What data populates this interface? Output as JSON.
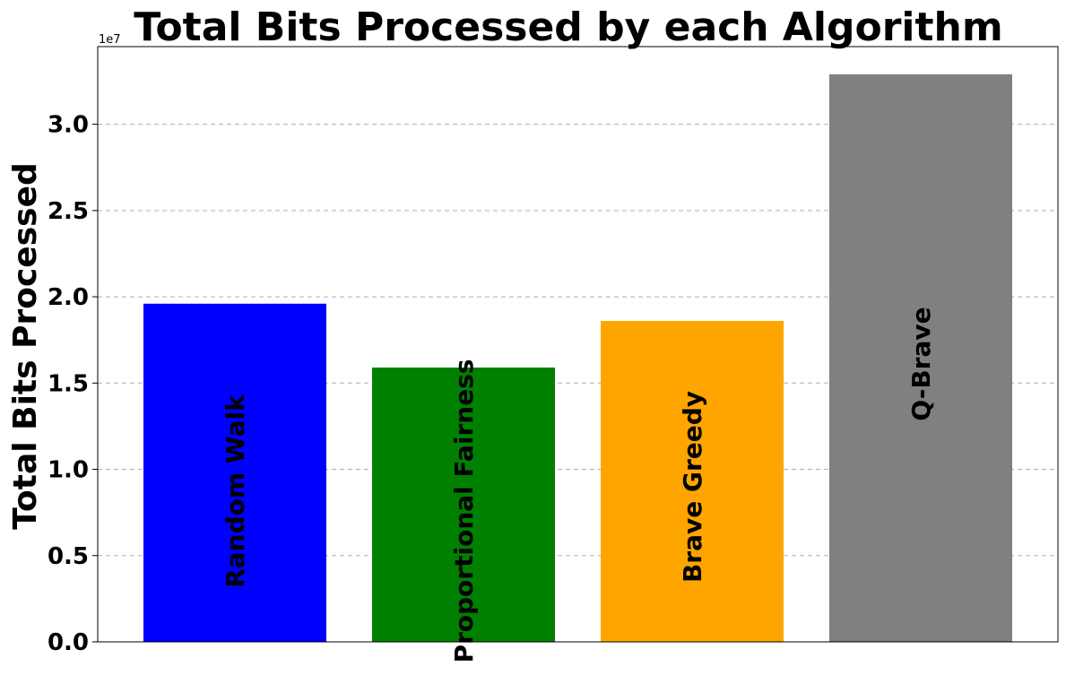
{
  "chart_data": {
    "type": "bar",
    "title": "Total Bits Processed by each Algorithm",
    "ylabel": "Total Bits Processed",
    "y_offset_label": "1e7",
    "ylim": [
      0,
      3.45
    ],
    "yticks": [
      0.0,
      0.5,
      1.0,
      1.5,
      2.0,
      2.5,
      3.0
    ],
    "ytick_labels": [
      "0.0",
      "0.5",
      "1.0",
      "1.5",
      "2.0",
      "2.5",
      "3.0"
    ],
    "categories": [
      "Random Walk",
      "Proportional Fairness",
      "Brave Greedy",
      "Q-Brave"
    ],
    "values": [
      1.96,
      1.59,
      1.86,
      3.29
    ],
    "colors": [
      "#0000ff",
      "#008000",
      "#ffa500",
      "#808080"
    ],
    "grid": "y-dashed",
    "legend": "none"
  }
}
